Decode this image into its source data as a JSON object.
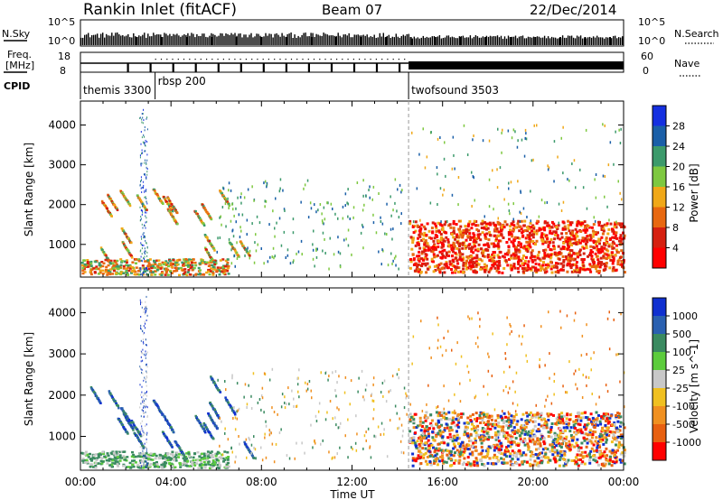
{
  "header": {
    "title": "Rankin Inlet (fitACF)",
    "beam": "Beam 07",
    "date": "22/Dec/2014"
  },
  "aux": {
    "nsky_label": "N.Sky",
    "nsearch_label": "N.Search",
    "nsky_ticks": [
      "10^5",
      "10^0"
    ],
    "nsearch_ticks": [
      "10^5",
      "10^0"
    ],
    "freq_label_1": "Freq.",
    "freq_label_2": "[MHz]",
    "freq_ticks": [
      "18",
      "8"
    ],
    "nave_label": "Nave",
    "nave_ticks": [
      "60",
      "0"
    ],
    "cpid_label": "CPID",
    "cpid_modes": [
      {
        "name": "themis 3300",
        "start_h": 0.0
      },
      {
        "name": "rbsp 200",
        "start_h": 3.3
      },
      {
        "name": "twofsound 3503",
        "start_h": 14.5
      }
    ]
  },
  "chart_data": [
    {
      "type": "heatmap",
      "panel": "power",
      "ylabel": "Slant Range [km]",
      "xlabel": "Time UT",
      "xlim_hours": [
        0,
        24
      ],
      "ylim_km": [
        180,
        4600
      ],
      "y_ticks": [
        1000,
        2000,
        3000,
        4000
      ],
      "x_tick_labels": [
        "00:00",
        "04:00",
        "08:00",
        "12:00",
        "16:00",
        "20:00",
        "00:00"
      ],
      "colorbar": {
        "label": "Power [dB]",
        "tick_labels": [
          "4",
          "8",
          "12",
          "16",
          "20",
          "24",
          "28"
        ],
        "colors": [
          "#1530e0",
          "#1a5fa8",
          "#3c9a6b",
          "#7ec840",
          "#f0a818",
          "#e86810",
          "#d62010",
          "#ff0000"
        ]
      }
    },
    {
      "type": "heatmap",
      "panel": "velocity",
      "ylabel": "Slant Range [km]",
      "xlabel": "Time UT",
      "xlim_hours": [
        0,
        24
      ],
      "ylim_km": [
        180,
        4600
      ],
      "y_ticks": [
        1000,
        2000,
        3000,
        4000
      ],
      "x_tick_labels": [
        "00:00",
        "04:00",
        "08:00",
        "12:00",
        "16:00",
        "20:00",
        "00:00"
      ],
      "colorbar": {
        "label": "Velocity [m s^-1]",
        "tick_labels": [
          "1000",
          "500",
          "100",
          "25",
          "-25",
          "-100",
          "-500",
          "-1000"
        ],
        "colors": [
          "#1030d0",
          "#2a60b0",
          "#3a8a60",
          "#5ccc3c",
          "#c8c8c8",
          "#f0c020",
          "#f09020",
          "#e86010",
          "#ff0000"
        ]
      }
    }
  ],
  "colors": {
    "ground_scatter": "#bdbdbd",
    "mode_change_line": "#999999"
  }
}
